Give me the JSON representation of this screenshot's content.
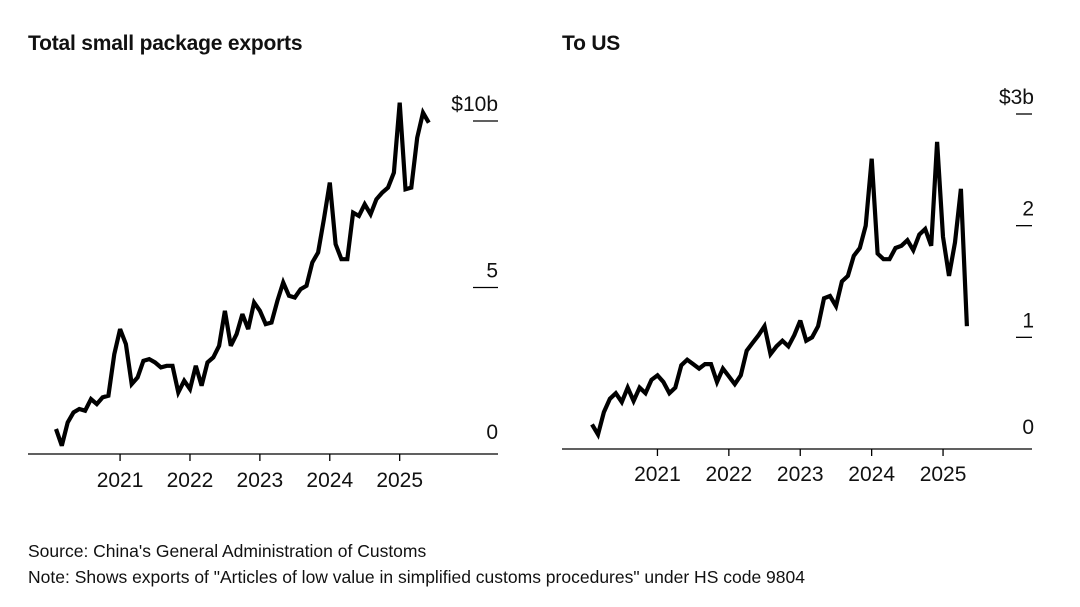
{
  "chart_data": [
    {
      "type": "line",
      "title": "Total small package exports",
      "series": [
        {
          "name": "Total small package exports",
          "values": [
            0.75,
            0.25,
            0.95,
            1.25,
            1.35,
            1.3,
            1.65,
            1.5,
            1.7,
            1.75,
            3.0,
            3.75,
            3.3,
            2.1,
            2.3,
            2.8,
            2.85,
            2.75,
            2.6,
            2.65,
            2.65,
            1.85,
            2.2,
            1.95,
            2.65,
            2.05,
            2.75,
            2.9,
            3.25,
            4.3,
            3.25,
            3.6,
            4.2,
            3.75,
            4.55,
            4.3,
            3.9,
            3.95,
            4.6,
            5.15,
            4.75,
            4.7,
            4.95,
            5.05,
            5.75,
            6.05,
            7.05,
            8.15,
            6.3,
            5.85,
            5.85,
            7.25,
            7.15,
            7.5,
            7.2,
            7.65,
            7.85,
            8.0,
            8.45,
            10.55,
            7.95,
            8.0,
            9.5,
            10.25,
            9.95
          ],
          "start": "2020-02",
          "frequency": "monthly"
        }
      ],
      "y_ticks": [
        {
          "value": 0,
          "label": "0"
        },
        {
          "value": 5,
          "label": "5"
        },
        {
          "value": 10,
          "label": "$10b"
        }
      ],
      "x_ticks": [
        {
          "year": 2021,
          "label": "2021"
        },
        {
          "year": 2022,
          "label": "2022"
        },
        {
          "year": 2023,
          "label": "2023"
        },
        {
          "year": 2024,
          "label": "2024"
        },
        {
          "year": 2025,
          "label": "2025"
        }
      ],
      "ylim": [
        0,
        10
      ],
      "xlabel": "",
      "ylabel": "",
      "grid": false,
      "legend": "none"
    },
    {
      "type": "line",
      "title": "To US",
      "series": [
        {
          "name": "To US",
          "values": [
            0.22,
            0.13,
            0.33,
            0.45,
            0.5,
            0.42,
            0.55,
            0.43,
            0.55,
            0.5,
            0.62,
            0.66,
            0.6,
            0.5,
            0.55,
            0.75,
            0.8,
            0.76,
            0.72,
            0.76,
            0.76,
            0.6,
            0.72,
            0.65,
            0.58,
            0.66,
            0.88,
            0.95,
            1.02,
            1.1,
            0.85,
            0.92,
            0.97,
            0.92,
            1.02,
            1.15,
            0.97,
            1.0,
            1.1,
            1.35,
            1.37,
            1.28,
            1.5,
            1.55,
            1.73,
            1.8,
            2.0,
            2.6,
            1.75,
            1.7,
            1.7,
            1.8,
            1.82,
            1.87,
            1.78,
            1.92,
            1.97,
            1.82,
            2.75,
            1.9,
            1.55,
            1.85,
            2.33,
            1.1
          ],
          "start": "2020-02",
          "frequency": "monthly"
        }
      ],
      "y_ticks": [
        {
          "value": 0,
          "label": "0"
        },
        {
          "value": 1,
          "label": "1"
        },
        {
          "value": 2,
          "label": "2"
        },
        {
          "value": 3,
          "label": "$3b"
        }
      ],
      "x_ticks": [
        {
          "year": 2021,
          "label": "2021"
        },
        {
          "year": 2022,
          "label": "2022"
        },
        {
          "year": 2023,
          "label": "2023"
        },
        {
          "year": 2024,
          "label": "2024"
        },
        {
          "year": 2025,
          "label": "2025"
        }
      ],
      "ylim": [
        0,
        3
      ],
      "xlabel": "",
      "ylabel": "",
      "grid": false,
      "legend": "none"
    }
  ],
  "footer": {
    "source": "Source: China's General Administration of Customs",
    "note": "Note: Shows exports of \"Articles of low value in simplified customs procedures\" under HS code 9804"
  },
  "colors": {
    "line": "#000000",
    "text": "#111111",
    "background": "#ffffff"
  }
}
